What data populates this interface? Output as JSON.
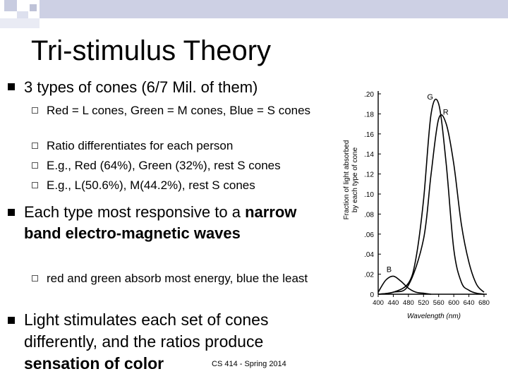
{
  "slide": {
    "title": "Tri-stimulus Theory",
    "footer": "CS 414 - Spring 2014",
    "bullets": [
      {
        "text": "3 types of cones (6/7 Mil. of them)",
        "sub": [
          "Red = L cones, Green = M cones, Blue = S cones",
          "Ratio differentiates for each person",
          "E.g., Red (64%), Green (32%), rest S cones",
          "E.g., L(50.6%), M(44.2%), rest S cones"
        ]
      },
      {
        "text_plain": "Each type most responsive to a ",
        "text_bold": "narrow band electro-magnetic waves",
        "sub": [
          "red and green absorb most energy, blue the least"
        ]
      },
      {
        "text_plain": "Light stimulates each set of cones differently, and the ratios produce ",
        "text_bold": "sensation of color"
      }
    ]
  },
  "chart_data": {
    "type": "line",
    "xlabel": "Wavelength (nm)",
    "ylabel": "Fraction of light absorbed by each type of cone",
    "x_ticks": [
      "400",
      "440",
      "480",
      "520",
      "560",
      "600",
      "640",
      "680"
    ],
    "y_ticks": [
      ".20",
      ".18",
      ".16",
      ".14",
      ".12",
      ".10",
      ".08",
      ".06",
      ".04",
      ".02",
      "0"
    ],
    "xlim": [
      400,
      680
    ],
    "ylim": [
      0,
      0.2
    ],
    "series": [
      {
        "name": "B",
        "x": [
          400,
          420,
          440,
          460,
          480,
          500,
          520,
          540
        ],
        "y": [
          0.002,
          0.014,
          0.018,
          0.013,
          0.006,
          0.002,
          0.001,
          0
        ]
      },
      {
        "name": "G",
        "x": [
          400,
          440,
          480,
          500,
          520,
          540,
          560,
          580,
          600,
          620,
          640,
          660,
          680
        ],
        "y": [
          0,
          0.002,
          0.011,
          0.036,
          0.094,
          0.18,
          0.19,
          0.13,
          0.045,
          0.012,
          0.004,
          0.001,
          0
        ]
      },
      {
        "name": "R",
        "x": [
          400,
          440,
          480,
          520,
          540,
          560,
          580,
          600,
          620,
          640,
          660,
          680
        ],
        "y": [
          0,
          0.002,
          0.009,
          0.055,
          0.12,
          0.175,
          0.17,
          0.13,
          0.07,
          0.032,
          0.01,
          0.002
        ]
      }
    ]
  }
}
